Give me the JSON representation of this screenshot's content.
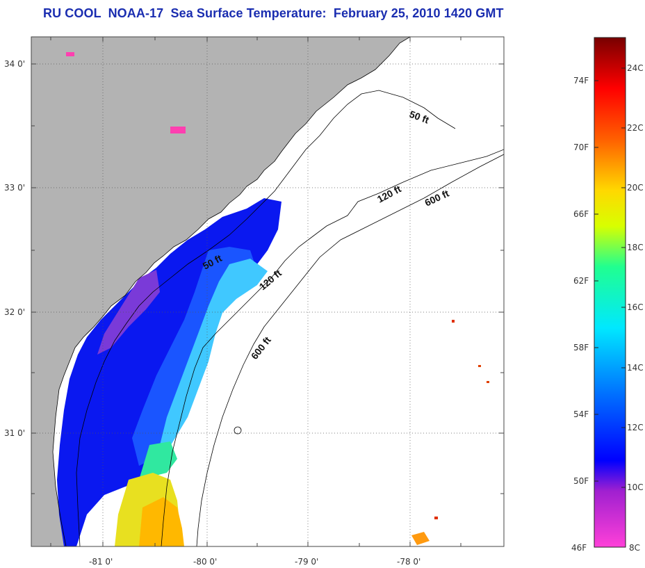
{
  "title": "RU COOL  NOAA-17  Sea Surface Temperature:  February 25, 2010 1420 GMT",
  "map": {
    "lat_labels": [
      "34 0'",
      "33 0'",
      "32 0'",
      "31 0'"
    ],
    "lon_labels": [
      "-81 0'",
      "-80 0'",
      "-79 0'",
      "-78 0'"
    ],
    "contours": [
      "50 ft",
      "50 ft",
      "120 ft",
      "120 ft",
      "600 ft",
      "600 ft"
    ],
    "land_color": "#b3b3b3",
    "no_data_color": "#ffffff"
  },
  "colorbar": {
    "fahrenheit": [
      "74F",
      "70F",
      "66F",
      "62F",
      "58F",
      "54F",
      "50F",
      "46F"
    ],
    "celsius": [
      "24C",
      "22C",
      "20C",
      "18C",
      "16C",
      "14C",
      "12C",
      "10C",
      "8C"
    ],
    "colors": [
      "#ff3fd0",
      "#8a2bd0",
      "#0000ff",
      "#0066ff",
      "#00d0ff",
      "#00ffb0",
      "#ffff00",
      "#ffa000",
      "#ff3000",
      "#a00000",
      "#7a0000"
    ]
  }
}
